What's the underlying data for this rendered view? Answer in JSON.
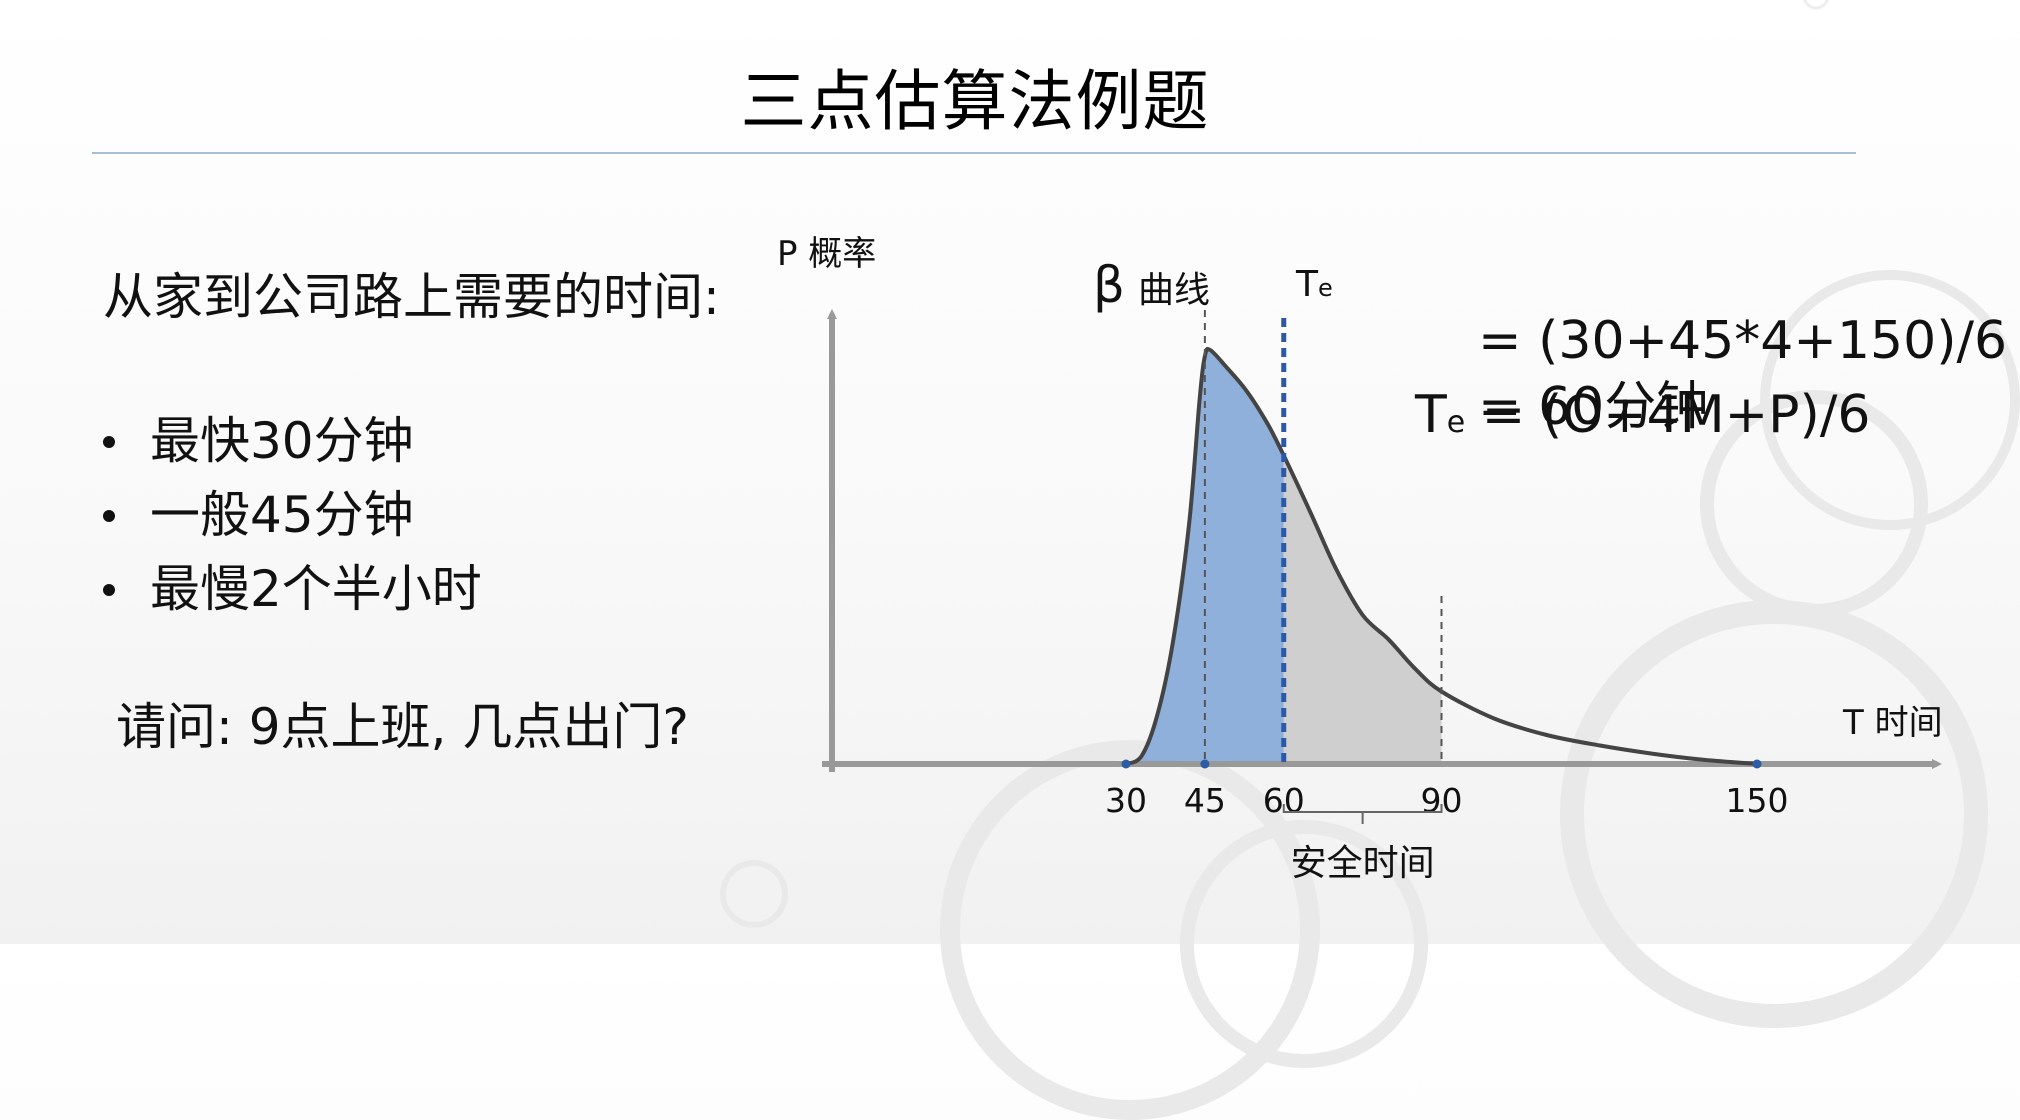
{
  "slide": {
    "title": "三点估算法例题",
    "question_head": "从家到公司路上需要的时间:",
    "bullets": [
      {
        "label": "最快30分钟"
      },
      {
        "label": "一般45分钟"
      },
      {
        "label": "最慢2个半小时"
      }
    ],
    "ask": "请问: 9点上班, 几点出门?"
  },
  "formula": {
    "lhs": "T",
    "lhs_sub": "e",
    "line1_rest": " = (O+4M+P)/6",
    "line2": "= (30+45*4+150)/6",
    "line3": "= 60分钟"
  },
  "chart_data": {
    "type": "area",
    "y_axis_label": "P 概率",
    "x_axis_label": "T 时间",
    "curve_label_symbol": "β",
    "curve_label": "曲线",
    "te_label": "T",
    "te_label_sub": "e",
    "x_ticks": [
      {
        "label": "30",
        "value": 30
      },
      {
        "label": "45",
        "value": 45
      },
      {
        "label": "60",
        "value": 60
      },
      {
        "label": "90",
        "value": 90
      },
      {
        "label": "150",
        "value": 150
      }
    ],
    "curve_points": [
      [
        30,
        0
      ],
      [
        33,
        0.02
      ],
      [
        36,
        0.12
      ],
      [
        39,
        0.3
      ],
      [
        42,
        0.58
      ],
      [
        44,
        0.88
      ],
      [
        45,
        0.985
      ],
      [
        46,
        1.0
      ],
      [
        49,
        0.96
      ],
      [
        53,
        0.9
      ],
      [
        57,
        0.82
      ],
      [
        60,
        0.745
      ],
      [
        65,
        0.61
      ],
      [
        70,
        0.47
      ],
      [
        75,
        0.36
      ],
      [
        80,
        0.3
      ],
      [
        85,
        0.23
      ],
      [
        90,
        0.175
      ],
      [
        100,
        0.11
      ],
      [
        110,
        0.07
      ],
      [
        120,
        0.045
      ],
      [
        130,
        0.025
      ],
      [
        140,
        0.01
      ],
      [
        150,
        0
      ]
    ],
    "shaded_regions": [
      {
        "name": "expected-region",
        "from": 30,
        "to": 60,
        "color": "#8fb0da"
      },
      {
        "name": "safety-region",
        "from": 60,
        "to": 90,
        "color": "#cfcfcf"
      }
    ],
    "markers": {
      "most_likely": 45,
      "expected": 60,
      "safety_end": 90
    },
    "bracket": {
      "from": 60,
      "to": 90,
      "label": "安全时间"
    },
    "colors": {
      "axis": "#999999",
      "curve": "#444444",
      "te_line": "#2b59a8",
      "dots": "#2b5ca5"
    }
  }
}
